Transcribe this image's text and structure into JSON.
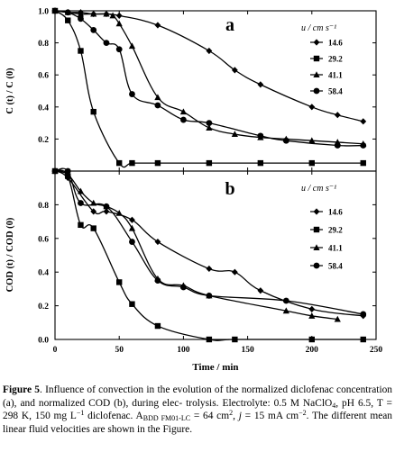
{
  "chart_data": [
    {
      "type": "line",
      "panel_label": "a",
      "ylabel": "C (t) / C (0)",
      "xlabel": "",
      "xlim": [
        0,
        250
      ],
      "ylim": [
        0,
        1.0
      ],
      "yticks": [
        "0.2",
        "0.4",
        "0.6",
        "0.8",
        "1.0"
      ],
      "legend_title": "u / cm s⁻¹",
      "legend_position": "top-right",
      "series": [
        {
          "name": "14.6",
          "marker": "diamond",
          "x": [
            0,
            10,
            20,
            30,
            40,
            50,
            80,
            120,
            140,
            160,
            200,
            220,
            240
          ],
          "y": [
            1.0,
            0.99,
            0.99,
            0.98,
            0.98,
            0.97,
            0.91,
            0.75,
            0.63,
            0.54,
            0.4,
            0.35,
            0.31
          ]
        },
        {
          "name": "29.2",
          "marker": "square",
          "x": [
            0,
            10,
            20,
            30,
            50,
            60,
            80,
            120,
            160,
            200,
            240
          ],
          "y": [
            1.0,
            0.94,
            0.75,
            0.37,
            0.05,
            0.05,
            0.05,
            0.05,
            0.05,
            0.05,
            0.05
          ]
        },
        {
          "name": "41.1",
          "marker": "triangle",
          "x": [
            0,
            10,
            20,
            30,
            40,
            45,
            50,
            60,
            80,
            100,
            120,
            140,
            160,
            180,
            200,
            220,
            240
          ],
          "y": [
            1.0,
            0.99,
            0.98,
            0.98,
            0.98,
            0.97,
            0.92,
            0.78,
            0.46,
            0.37,
            0.27,
            0.23,
            0.21,
            0.2,
            0.19,
            0.18,
            0.17
          ]
        },
        {
          "name": "58.4",
          "marker": "circle",
          "x": [
            0,
            10,
            20,
            30,
            40,
            50,
            60,
            80,
            100,
            120,
            160,
            180,
            220,
            240
          ],
          "y": [
            1.0,
            0.99,
            0.95,
            0.88,
            0.8,
            0.76,
            0.48,
            0.41,
            0.32,
            0.3,
            0.22,
            0.19,
            0.16,
            0.16
          ]
        }
      ]
    },
    {
      "type": "line",
      "panel_label": "b",
      "ylabel": "COD (t) / COD (0)",
      "xlabel": "Time / min",
      "xlim": [
        0,
        250
      ],
      "ylim": [
        0,
        1.0
      ],
      "yticks": [
        "0.0",
        "0.2",
        "0.4",
        "0.6",
        "0.8"
      ],
      "xticks": [
        "0",
        "50",
        "100",
        "150",
        "200",
        "250"
      ],
      "legend_title": "u / cm s⁻¹",
      "legend_position": "top-right",
      "series": [
        {
          "name": "14.6",
          "marker": "diamond",
          "x": [
            0,
            10,
            30,
            40,
            60,
            80,
            120,
            140,
            160,
            200,
            240
          ],
          "y": [
            1.0,
            0.96,
            0.76,
            0.76,
            0.71,
            0.58,
            0.42,
            0.4,
            0.29,
            0.18,
            0.14
          ]
        },
        {
          "name": "29.2",
          "marker": "square",
          "x": [
            0,
            10,
            20,
            30,
            50,
            60,
            80,
            120,
            140,
            200,
            240
          ],
          "y": [
            1.0,
            0.97,
            0.68,
            0.66,
            0.34,
            0.21,
            0.08,
            0.0,
            0.0,
            0.0,
            0.0
          ]
        },
        {
          "name": "41.1",
          "marker": "triangle",
          "x": [
            0,
            10,
            20,
            30,
            40,
            50,
            60,
            80,
            100,
            120,
            180,
            200,
            220
          ],
          "y": [
            1.0,
            0.98,
            0.88,
            0.81,
            0.79,
            0.75,
            0.66,
            0.36,
            0.32,
            0.26,
            0.17,
            0.14,
            0.12
          ]
        },
        {
          "name": "58.4",
          "marker": "circle",
          "x": [
            0,
            10,
            20,
            40,
            60,
            80,
            100,
            120,
            180,
            240
          ],
          "y": [
            1.0,
            1.0,
            0.81,
            0.79,
            0.58,
            0.35,
            0.31,
            0.26,
            0.23,
            0.15
          ]
        }
      ]
    }
  ],
  "caption": {
    "figure_label": "Figure 5",
    "l1": ". Influence of convection in the evolution of the normalized",
    "l2": "diclofenac concentration (a), and normalized COD (b), during elec-",
    "l3a": "trolysis. Electrolyte: 0.5 M NaClO",
    "l3_sub": "4",
    "l3b": ", pH 6.5, T = 298 K, 150 mg L",
    "l3_sup": "−1",
    "l4a": "diclofenac. A",
    "l4_sub": "BDD FM01-LC",
    "l4b": " = 64 cm",
    "l4_sup": "2",
    "l4c": ", ",
    "l4_j": "j",
    "l4d": " = 15 mA cm",
    "l4_sup2": "−2",
    "l4e": ". The different",
    "l5": "mean linear fluid velocities are shown in the Figure."
  }
}
